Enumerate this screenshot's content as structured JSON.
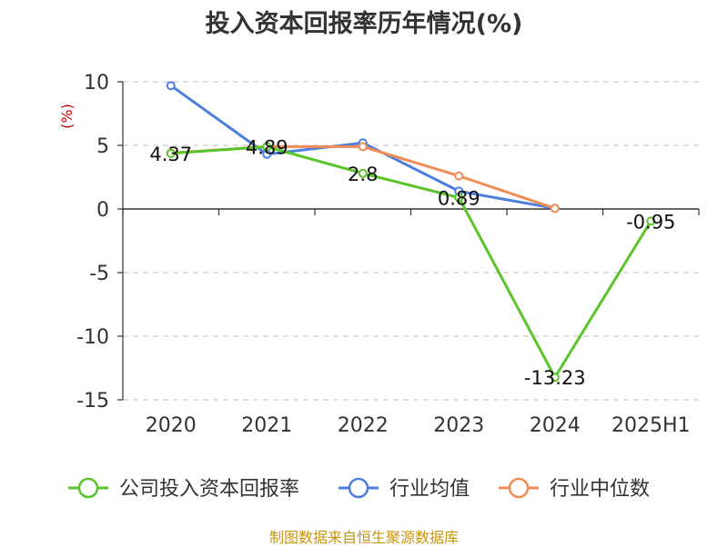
{
  "colors": {
    "title": "#333333",
    "unit": "#cc0000",
    "axis": "#333333",
    "grid": "#cccccc",
    "source": "#c8960c"
  },
  "chart_data": {
    "type": "line",
    "title": "投入资本回报率历年情况(%)",
    "ylabel": "(%)",
    "xlabel": "",
    "categories": [
      "2020",
      "2021",
      "2022",
      "2023",
      "2024",
      "2025H1"
    ],
    "ylim": [
      -15,
      10
    ],
    "yticks": [
      10,
      5,
      0,
      -5,
      -10,
      -15
    ],
    "grid": "horizontal-dashed",
    "legend_position": "bottom",
    "series": [
      {
        "name": "公司投入资本回报率",
        "color": "#5ac52b",
        "values": [
          4.37,
          4.89,
          2.8,
          0.89,
          -13.23,
          -0.95
        ],
        "labels": [
          "4.37",
          "4.89",
          "2.8",
          "0.89",
          "-13.23",
          "-0.95"
        ]
      },
      {
        "name": "行业均值",
        "color": "#4e7fe0",
        "values": [
          9.7,
          4.3,
          5.2,
          1.4,
          0.05,
          null
        ]
      },
      {
        "name": "行业中位数",
        "color": "#f08c55",
        "values": [
          4.4,
          4.9,
          4.9,
          2.6,
          0.05,
          null
        ]
      }
    ]
  },
  "source": "制图数据来自恒生聚源数据库"
}
